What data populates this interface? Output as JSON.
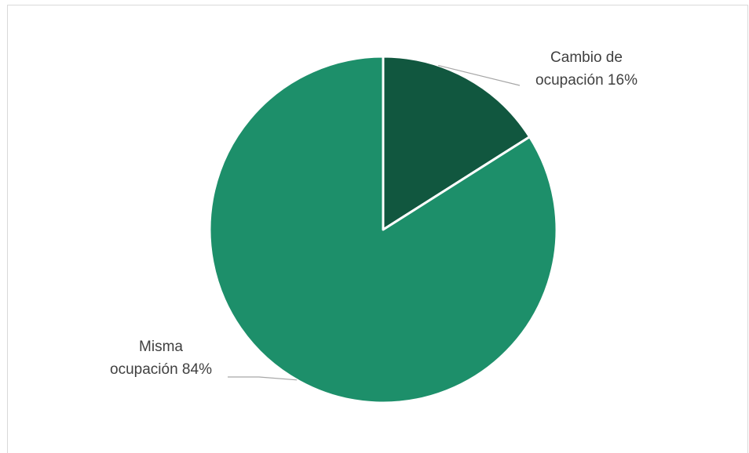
{
  "chart_data": {
    "type": "pie",
    "slices": [
      {
        "label_line1": "Cambio de",
        "label_line2": "ocupación 16%",
        "value": 16,
        "color": "#11573f"
      },
      {
        "label_line1": "Misma",
        "label_line2": "ocupación 84%",
        "value": 84,
        "color": "#1d8f6a"
      }
    ],
    "leader_line_color": "#a6a6a6"
  }
}
